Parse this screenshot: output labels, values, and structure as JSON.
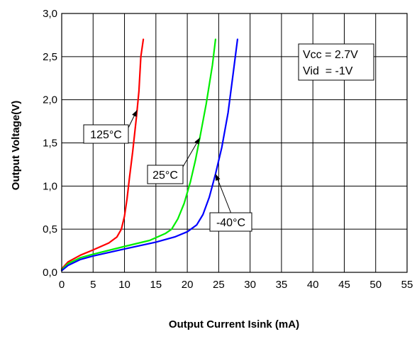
{
  "chart_data": {
    "type": "line",
    "xlabel": "Output Current Isink (mA)",
    "ylabel": "Output Voltage(V)",
    "xlim": [
      0,
      55
    ],
    "ylim": [
      0,
      3.0
    ],
    "xticks": [
      0,
      5,
      10,
      15,
      20,
      25,
      30,
      35,
      40,
      45,
      50,
      55
    ],
    "yticks": [
      0.0,
      0.5,
      1.0,
      1.5,
      2.0,
      2.5,
      3.0
    ],
    "xtick_labels": [
      "0",
      "5",
      "10",
      "15",
      "20",
      "25",
      "30",
      "35",
      "40",
      "45",
      "50",
      "55"
    ],
    "ytick_labels": [
      "0,0",
      "0,5",
      "1,0",
      "1,5",
      "2,0",
      "2,5",
      "3,0"
    ],
    "grid": true,
    "conditions": {
      "vcc": "Vcc = 2.7V",
      "vid": "Vid  = -1V"
    },
    "series": [
      {
        "name": "125°C",
        "color": "#ff0000",
        "label_anchor": [
          12.0,
          1.88
        ],
        "points": [
          [
            0,
            0.04
          ],
          [
            1,
            0.12
          ],
          [
            3,
            0.2
          ],
          [
            5,
            0.26
          ],
          [
            7.5,
            0.34
          ],
          [
            8.8,
            0.41
          ],
          [
            9.5,
            0.5
          ],
          [
            10.0,
            0.65
          ],
          [
            10.4,
            0.85
          ],
          [
            10.8,
            1.1
          ],
          [
            11.3,
            1.4
          ],
          [
            11.9,
            1.8
          ],
          [
            12.3,
            2.1
          ],
          [
            12.6,
            2.5
          ],
          [
            13.0,
            2.7
          ]
        ]
      },
      {
        "name": "25°C",
        "color": "#00ee00",
        "label_anchor": [
          22.0,
          1.56
        ],
        "points": [
          [
            0,
            0.03
          ],
          [
            1,
            0.1
          ],
          [
            3,
            0.17
          ],
          [
            5,
            0.21
          ],
          [
            10,
            0.3
          ],
          [
            14,
            0.37
          ],
          [
            16.5,
            0.45
          ],
          [
            17.5,
            0.5
          ],
          [
            18.5,
            0.62
          ],
          [
            19.5,
            0.8
          ],
          [
            20.5,
            1.05
          ],
          [
            21.3,
            1.3
          ],
          [
            22.0,
            1.56
          ],
          [
            23.0,
            1.95
          ],
          [
            24.0,
            2.4
          ],
          [
            24.5,
            2.7
          ]
        ]
      },
      {
        "name": "-40°C",
        "color": "#0000ff",
        "label_anchor": [
          24.5,
          1.14
        ],
        "points": [
          [
            0,
            0.02
          ],
          [
            1,
            0.08
          ],
          [
            3,
            0.15
          ],
          [
            5,
            0.19
          ],
          [
            10,
            0.27
          ],
          [
            15,
            0.35
          ],
          [
            18,
            0.41
          ],
          [
            20,
            0.47
          ],
          [
            21.5,
            0.55
          ],
          [
            22.5,
            0.67
          ],
          [
            23.5,
            0.87
          ],
          [
            24.5,
            1.14
          ],
          [
            25.5,
            1.45
          ],
          [
            26.5,
            1.85
          ],
          [
            27.3,
            2.3
          ],
          [
            28.0,
            2.7
          ]
        ]
      }
    ]
  }
}
